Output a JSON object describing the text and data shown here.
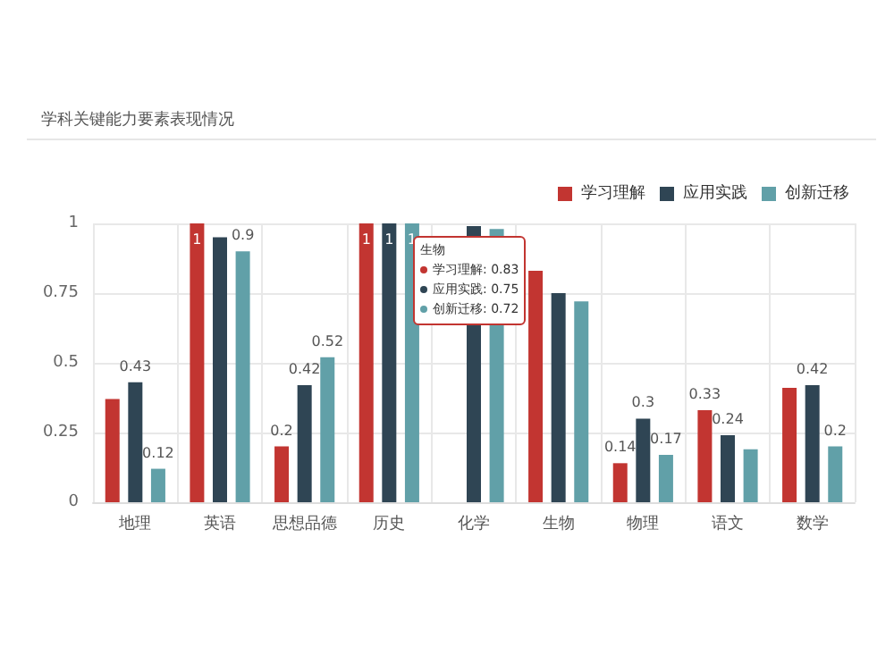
{
  "chart_data": {
    "type": "bar",
    "title": "学科关键能力要素表现情况",
    "categories": [
      "地理",
      "英语",
      "思想品德",
      "历史",
      "化学",
      "生物",
      "物理",
      "语文",
      "数学"
    ],
    "series": [
      {
        "name": "学习理解",
        "color": "#c23531",
        "values": [
          0.37,
          1,
          0.2,
          1,
          null,
          0.83,
          0.14,
          0.33,
          0.41
        ],
        "value_labels": [
          null,
          "1",
          "0.2",
          "1",
          null,
          null,
          "0.14",
          "0.33",
          null
        ]
      },
      {
        "name": "应用实践",
        "color": "#2f4554",
        "values": [
          0.43,
          0.95,
          0.42,
          1,
          0.99,
          0.75,
          0.3,
          0.24,
          0.42
        ],
        "value_labels": [
          "0.43",
          null,
          "0.42",
          "1",
          null,
          null,
          "0.3",
          "0.24",
          "0.42"
        ]
      },
      {
        "name": "创新迁移",
        "color": "#61a0a8",
        "values": [
          0.12,
          0.9,
          0.52,
          1,
          0.98,
          0.72,
          0.17,
          0.19,
          0.2
        ],
        "value_labels": [
          "0.12",
          "0.9",
          "0.52",
          "1",
          null,
          null,
          "0.17",
          null,
          "0.2"
        ]
      }
    ],
    "ylim": [
      0,
      1
    ],
    "yticks": [
      0,
      0.25,
      0.5,
      0.75,
      1
    ],
    "grid": true,
    "legend": "top right",
    "annotations": [
      "生物",
      "学习理解: 0.83",
      "应用实践: 0.75",
      "创新迁移: 0.72"
    ]
  }
}
